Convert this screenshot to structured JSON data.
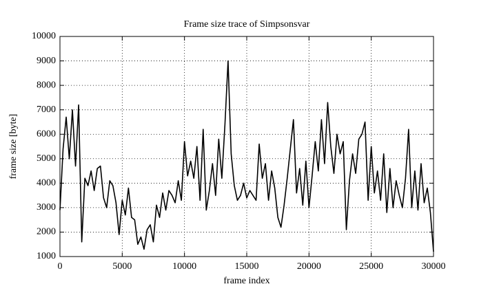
{
  "chart_data": {
    "type": "line",
    "title": "Frame size trace of Simpsonsvar",
    "xlabel": "frame index",
    "ylabel": "frame size [byte]",
    "color": "#000000",
    "grid": true,
    "xlim": [
      0,
      30000
    ],
    "xticks": [
      0,
      5000,
      10000,
      15000,
      20000,
      25000,
      30000
    ],
    "ylim": [
      1000,
      10000
    ],
    "yticks": [
      1000,
      2000,
      3000,
      4000,
      5000,
      6000,
      7000,
      8000,
      9000,
      10000
    ],
    "x": [
      0,
      250,
      500,
      750,
      1000,
      1250,
      1500,
      1750,
      2000,
      2250,
      2500,
      2750,
      3000,
      3250,
      3500,
      3750,
      4000,
      4250,
      4500,
      4750,
      5000,
      5250,
      5500,
      5750,
      6000,
      6250,
      6500,
      6750,
      7000,
      7250,
      7500,
      7750,
      8000,
      8250,
      8500,
      8750,
      9000,
      9250,
      9500,
      9750,
      10000,
      10250,
      10500,
      10750,
      11000,
      11250,
      11500,
      11750,
      12000,
      12250,
      12500,
      12750,
      13000,
      13250,
      13500,
      13750,
      14000,
      14250,
      14500,
      14750,
      15000,
      15250,
      15500,
      15750,
      16000,
      16250,
      16500,
      16750,
      17000,
      17250,
      17500,
      17750,
      18000,
      18250,
      18500,
      18750,
      19000,
      19250,
      19500,
      19750,
      20000,
      20250,
      20500,
      20750,
      21000,
      21250,
      21500,
      21750,
      22000,
      22250,
      22500,
      22750,
      23000,
      23250,
      23500,
      23750,
      24000,
      24250,
      24500,
      24750,
      25000,
      25250,
      25500,
      25750,
      26000,
      26250,
      26500,
      26750,
      27000,
      27250,
      27500,
      27750,
      28000,
      28250,
      28500,
      28750,
      29000,
      29250,
      29500,
      29750,
      30000
    ],
    "values": [
      2900,
      5400,
      6700,
      5000,
      7000,
      4700,
      7200,
      1600,
      4200,
      3900,
      4500,
      3700,
      4600,
      4700,
      3400,
      3000,
      4100,
      3900,
      3200,
      1900,
      3300,
      2700,
      3800,
      2600,
      2500,
      1500,
      1800,
      1300,
      2100,
      2300,
      1600,
      3100,
      2600,
      3600,
      2900,
      3700,
      3500,
      3200,
      4100,
      3300,
      5700,
      4300,
      4900,
      4200,
      5500,
      3300,
      6200,
      2900,
      3700,
      4800,
      3500,
      5800,
      4200,
      6400,
      9000,
      5200,
      3900,
      3300,
      3500,
      4000,
      3400,
      3700,
      3500,
      3300,
      5600,
      4200,
      4800,
      3300,
      4500,
      3800,
      2600,
      2200,
      3100,
      4200,
      5400,
      6600,
      3600,
      4600,
      3100,
      4900,
      3000,
      4300,
      5700,
      4500,
      6600,
      4800,
      7300,
      5500,
      4400,
      6000,
      5200,
      5700,
      2100,
      4100,
      5200,
      4400,
      5800,
      6000,
      6500,
      3300,
      5500,
      3600,
      4500,
      3300,
      5200,
      2800,
      4600,
      3000,
      4100,
      3500,
      3000,
      4200,
      6200,
      3000,
      4500,
      2900,
      4800,
      3200,
      3800,
      2800,
      1200
    ]
  }
}
